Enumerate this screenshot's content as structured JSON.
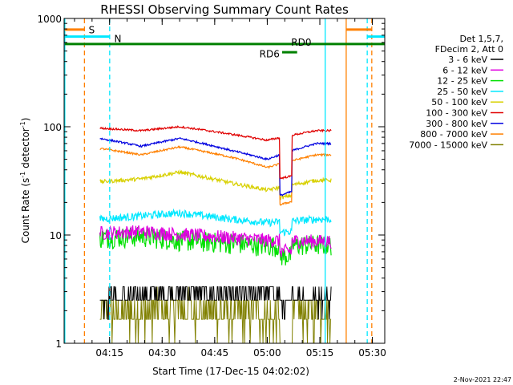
{
  "chart_data": {
    "type": "line",
    "title": "RHESSI Observing Summary Count Rates",
    "xlabel": "Start Time (17-Dec-15 04:02:02)",
    "ylabel_main": "Count Rate (s",
    "ylabel_sup1": "-1",
    "ylabel_mid": " detector",
    "ylabel_sup2": "-1",
    "ylabel_end": ")",
    "yscale": "log",
    "ylim": [
      1,
      1000
    ],
    "xlim_minutes": [
      0,
      91.5
    ],
    "x_ticks": [
      "04:15",
      "04:30",
      "04:45",
      "05:00",
      "05:15",
      "05:30"
    ],
    "y_ticks": [
      "1",
      "10",
      "100",
      "1000"
    ],
    "timestamp": "2-Nov-2021 22:47",
    "legend_header": [
      "Det 1,5,7,",
      "FDecim 2, Att 0"
    ],
    "series": [
      {
        "name": "3 - 6 keV",
        "color": "#000000",
        "level": [
          2.5,
          2.8,
          3.0,
          2.7,
          3.1,
          2.6
        ]
      },
      {
        "name": "6 - 12 keV",
        "color": "#e000e0",
        "level": [
          10.5,
          10.8,
          10.2,
          9.5,
          9.0,
          8.8
        ]
      },
      {
        "name": "12 - 25 keV",
        "color": "#00e000",
        "level": [
          9.5,
          9.8,
          9.0,
          8.5,
          8.0,
          8.2
        ]
      },
      {
        "name": "25 - 50 keV",
        "color": "#00e8ff",
        "level": [
          14,
          15,
          16,
          14,
          13,
          14
        ]
      },
      {
        "name": "50 - 100 keV",
        "color": "#d8d000",
        "level": [
          31,
          33,
          38,
          30,
          26,
          32
        ]
      },
      {
        "name": "100 - 300 keV",
        "color": "#e00000",
        "level": [
          97,
          92,
          100,
          85,
          75,
          92
        ]
      },
      {
        "name": "300 - 800 keV",
        "color": "#0000e0",
        "level": [
          78,
          66,
          78,
          60,
          50,
          70
        ]
      },
      {
        "name": "800 - 7000 keV",
        "color": "#ff8000",
        "level": [
          63,
          55,
          65,
          52,
          42,
          55
        ]
      },
      {
        "name": "7000 - 15000 keV",
        "color": "#808000",
        "level": [
          1.8,
          2.0,
          2.1,
          1.9,
          1.8,
          2.0
        ]
      }
    ],
    "annotations": [
      {
        "text": "S",
        "color": "#ff8000"
      },
      {
        "text": "N",
        "color": "#00e8ff"
      },
      {
        "text": "RD0",
        "color": "#008000"
      },
      {
        "text": "RD6",
        "color": "#008000"
      }
    ]
  }
}
